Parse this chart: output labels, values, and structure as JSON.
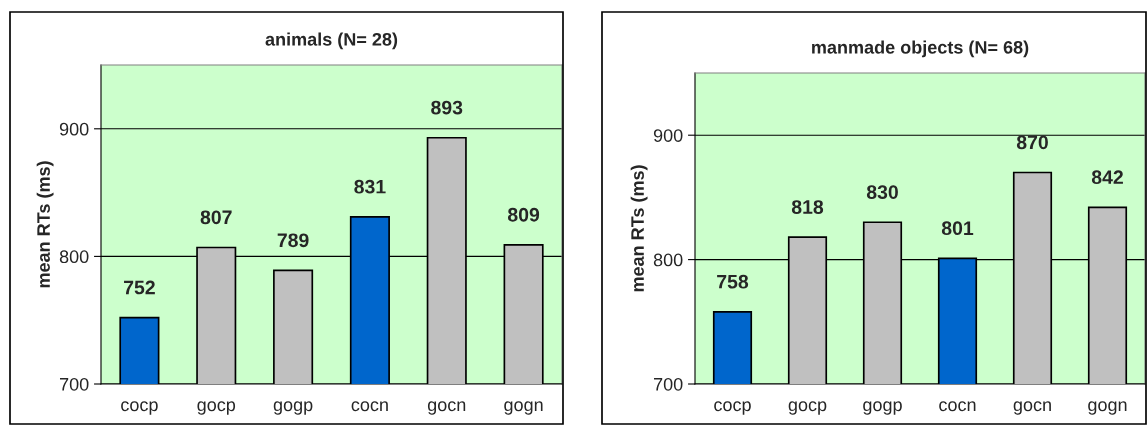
{
  "chart_data": [
    {
      "type": "bar",
      "title": "animals (N= 28)",
      "ylabel": "mean RTs (ms)",
      "categories": [
        "cocp",
        "gocp",
        "gogp",
        "cocn",
        "gocn",
        "gogn"
      ],
      "values": [
        752,
        807,
        789,
        831,
        893,
        809
      ],
      "colors": [
        "#0066cc",
        "#c0c0c0",
        "#c0c0c0",
        "#0066cc",
        "#c0c0c0",
        "#c0c0c0"
      ],
      "ylim": [
        700,
        950
      ],
      "yticks": [
        700,
        800,
        900
      ],
      "grid": "y",
      "data_labels": true
    },
    {
      "type": "bar",
      "title": "manmade objects (N= 68)",
      "ylabel": "mean RTs (ms)",
      "categories": [
        "cocp",
        "gocp",
        "gogp",
        "cocn",
        "gocn",
        "gogn"
      ],
      "values": [
        758,
        818,
        830,
        801,
        870,
        842
      ],
      "colors": [
        "#0066cc",
        "#c0c0c0",
        "#c0c0c0",
        "#0066cc",
        "#c0c0c0",
        "#c0c0c0"
      ],
      "ylim": [
        700,
        950
      ],
      "yticks": [
        700,
        800,
        900
      ],
      "grid": "y",
      "data_labels": true
    }
  ]
}
